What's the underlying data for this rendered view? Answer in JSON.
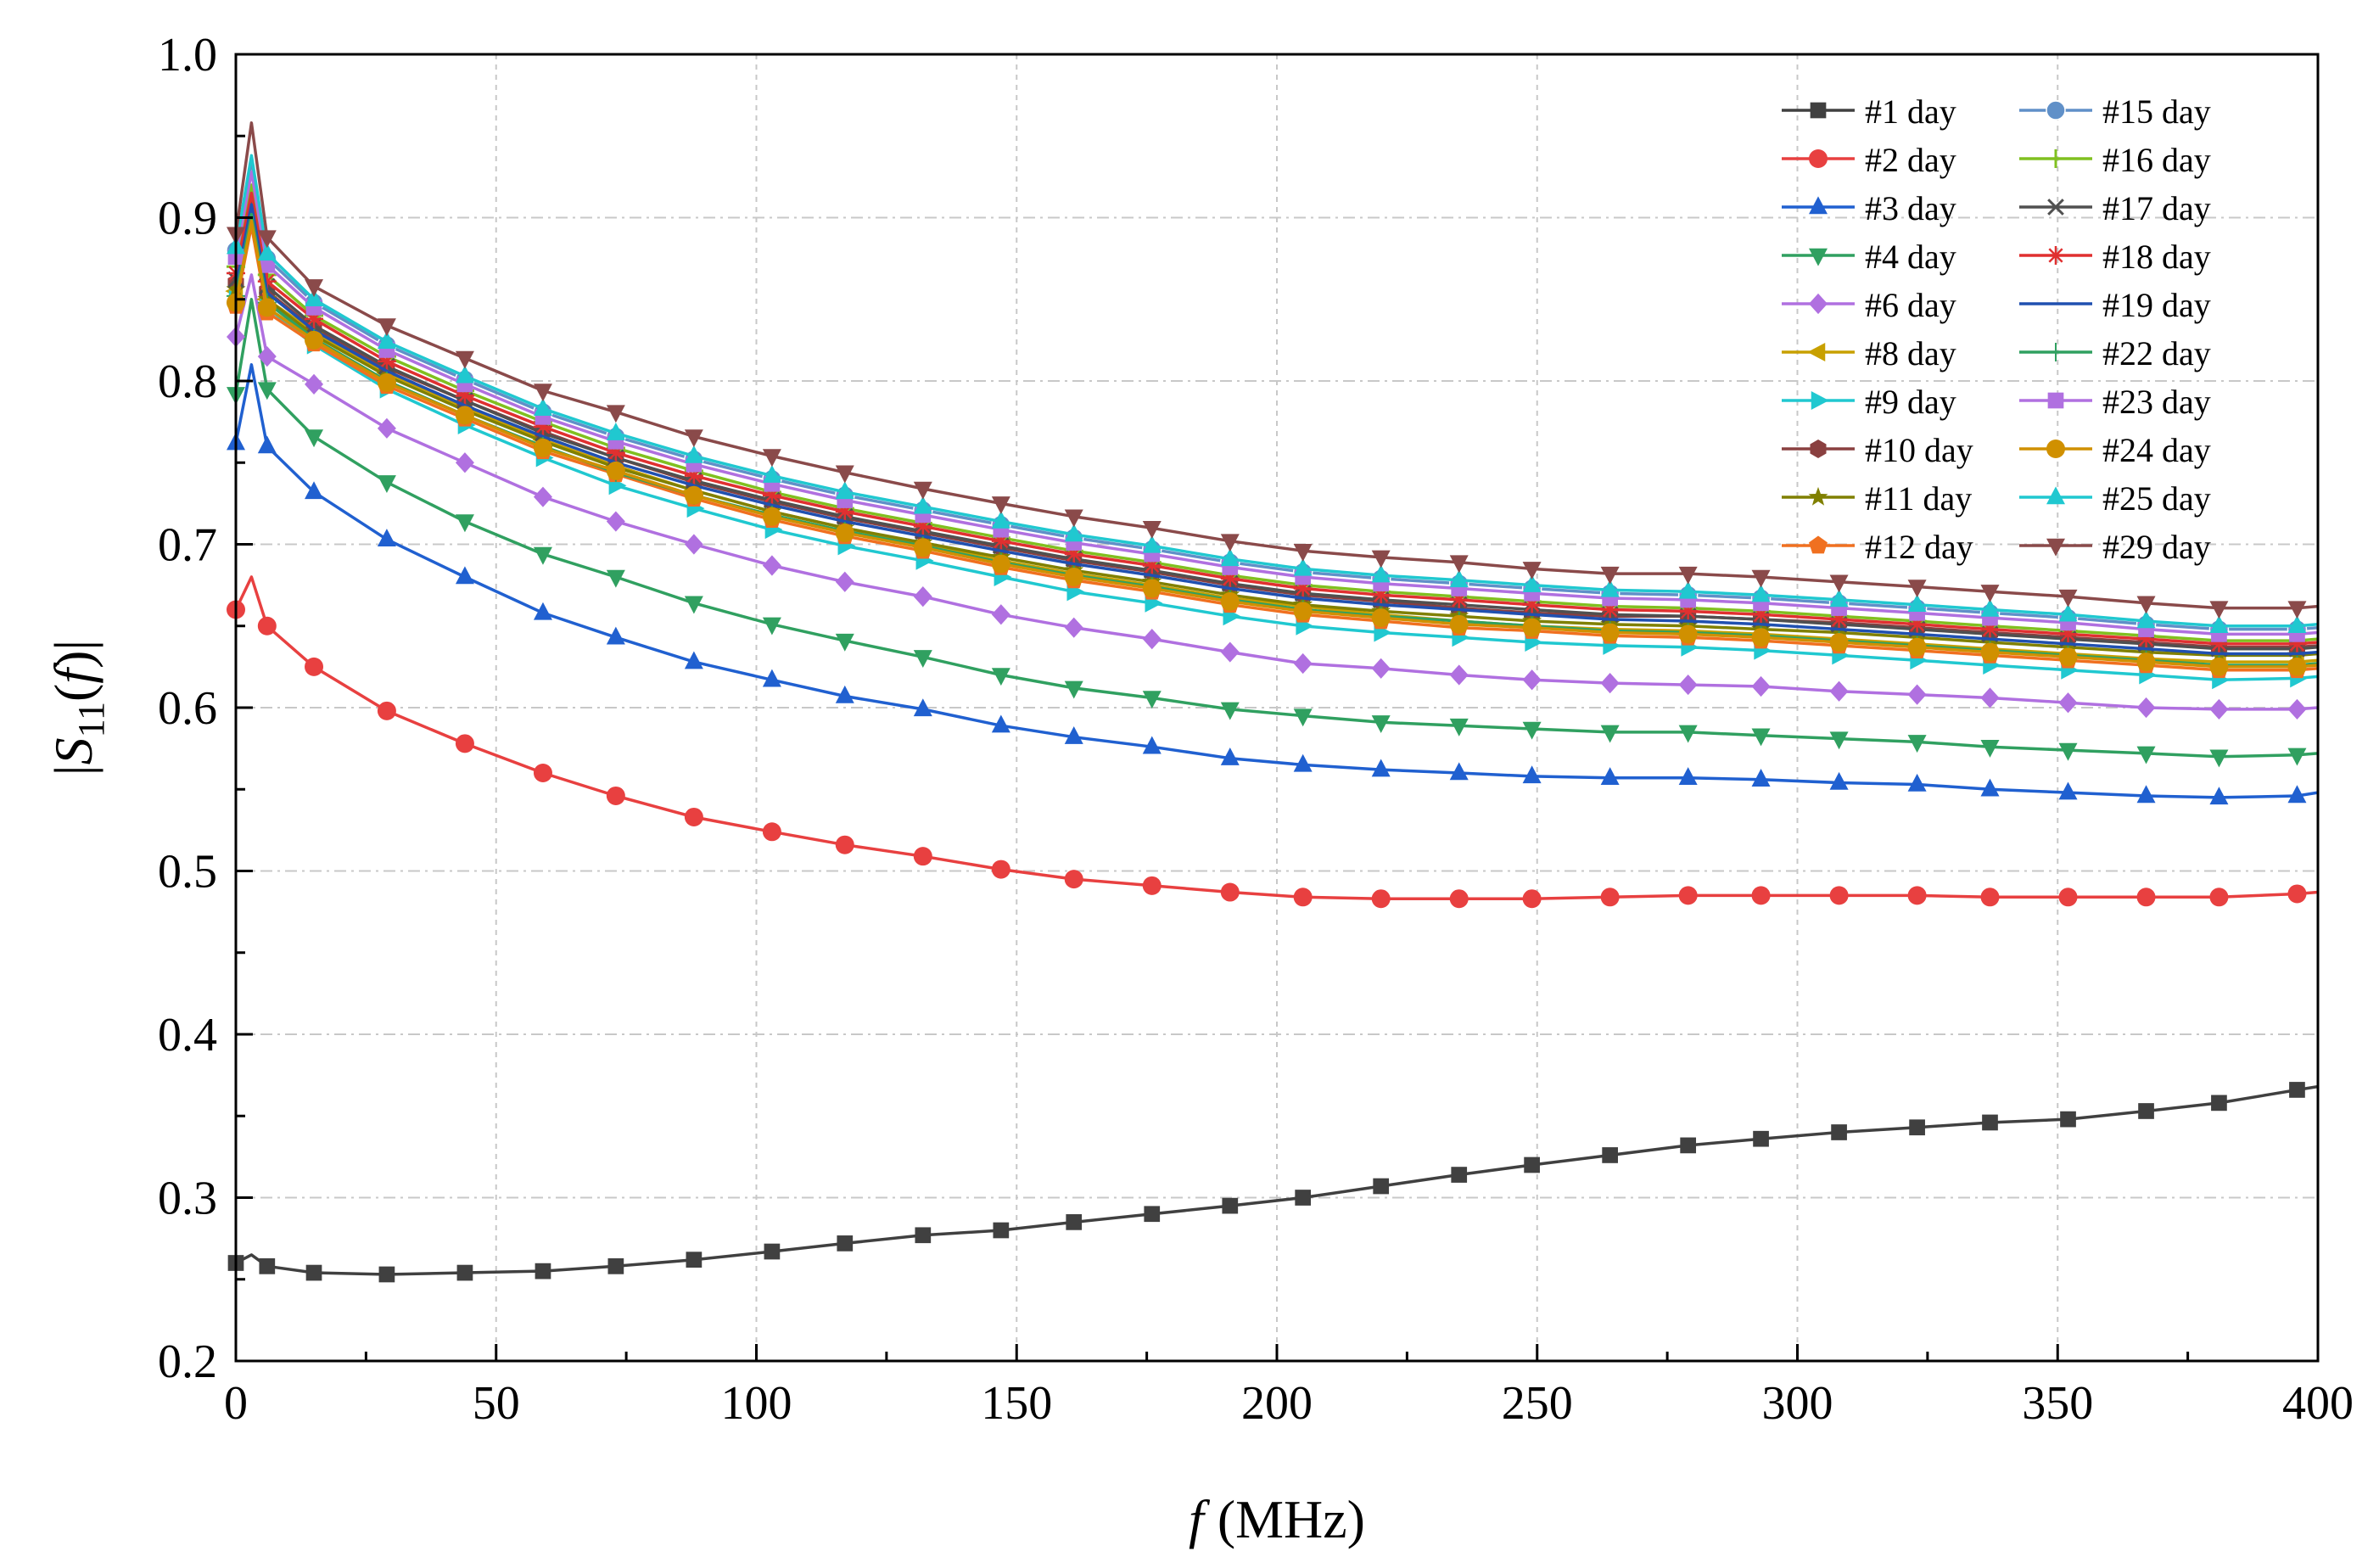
{
  "chart_data": {
    "type": "line",
    "xlabel_italic": "f",
    "xlabel_unit": " (MHz)",
    "ylabel_base": "S",
    "ylabel_sub": "11",
    "ylabel_arg": "f",
    "xlim": [
      0,
      400
    ],
    "ylim": [
      0.2,
      1.0
    ],
    "xticks": [
      0,
      50,
      100,
      150,
      200,
      250,
      300,
      350,
      400
    ],
    "xtick_labels": [
      "0",
      "50",
      "100",
      "150",
      "200",
      "250",
      "300",
      "350",
      "400"
    ],
    "yticks": [
      0.2,
      0.3,
      0.4,
      0.5,
      0.6,
      0.7,
      0.8,
      0.9,
      1.0
    ],
    "ytick_labels": [
      "0.2",
      "0.3",
      "0.4",
      "0.5",
      "0.6",
      "0.7",
      "0.8",
      "0.9",
      "1.0"
    ],
    "grid": true,
    "legend_position": "top-right",
    "x": [
      0,
      3,
      6,
      15,
      29,
      44,
      59,
      73,
      88,
      103,
      117,
      132,
      147,
      161,
      176,
      191,
      205,
      220,
      235,
      249,
      264,
      279,
      293,
      308,
      323,
      337,
      352,
      367,
      381,
      396,
      400
    ],
    "series": [
      {
        "name": "#1 day",
        "color": "#404040",
        "marker": "square",
        "values": [
          0.26,
          0.265,
          0.258,
          0.254,
          0.253,
          0.254,
          0.255,
          0.258,
          0.262,
          0.267,
          0.272,
          0.277,
          0.28,
          0.285,
          0.29,
          0.295,
          0.3,
          0.307,
          0.314,
          0.32,
          0.326,
          0.332,
          0.336,
          0.34,
          0.343,
          0.346,
          0.348,
          0.353,
          0.358,
          0.366,
          0.368
        ]
      },
      {
        "name": "#2 day",
        "color": "#e84040",
        "marker": "circle",
        "values": [
          0.66,
          0.68,
          0.65,
          0.625,
          0.598,
          0.578,
          0.56,
          0.546,
          0.533,
          0.524,
          0.516,
          0.509,
          0.501,
          0.495,
          0.491,
          0.487,
          0.484,
          0.483,
          0.483,
          0.483,
          0.484,
          0.485,
          0.485,
          0.485,
          0.485,
          0.484,
          0.484,
          0.484,
          0.484,
          0.486,
          0.487
        ]
      },
      {
        "name": "#3 day",
        "color": "#2060d0",
        "marker": "triangle-up",
        "values": [
          0.762,
          0.81,
          0.76,
          0.732,
          0.703,
          0.68,
          0.658,
          0.643,
          0.628,
          0.617,
          0.607,
          0.599,
          0.589,
          0.582,
          0.576,
          0.569,
          0.565,
          0.562,
          0.56,
          0.558,
          0.557,
          0.557,
          0.556,
          0.554,
          0.553,
          0.55,
          0.548,
          0.546,
          0.545,
          0.546,
          0.548
        ]
      },
      {
        "name": "#4 day",
        "color": "#30a060",
        "marker": "triangle-down",
        "values": [
          0.792,
          0.85,
          0.795,
          0.766,
          0.738,
          0.714,
          0.694,
          0.68,
          0.664,
          0.651,
          0.641,
          0.631,
          0.62,
          0.612,
          0.606,
          0.599,
          0.595,
          0.591,
          0.589,
          0.587,
          0.585,
          0.585,
          0.583,
          0.581,
          0.579,
          0.576,
          0.574,
          0.572,
          0.57,
          0.571,
          0.572
        ]
      },
      {
        "name": "#6 day",
        "color": "#b070e0",
        "marker": "diamond",
        "values": [
          0.827,
          0.865,
          0.815,
          0.798,
          0.771,
          0.75,
          0.729,
          0.714,
          0.7,
          0.687,
          0.677,
          0.668,
          0.657,
          0.649,
          0.642,
          0.634,
          0.627,
          0.624,
          0.62,
          0.617,
          0.615,
          0.614,
          0.613,
          0.61,
          0.608,
          0.606,
          0.603,
          0.6,
          0.599,
          0.599,
          0.6
        ]
      },
      {
        "name": "#8 day",
        "color": "#c8a000",
        "marker": "triangle-left",
        "values": [
          0.855,
          0.905,
          0.85,
          0.83,
          0.805,
          0.784,
          0.764,
          0.748,
          0.733,
          0.72,
          0.71,
          0.7,
          0.69,
          0.682,
          0.675,
          0.667,
          0.662,
          0.657,
          0.653,
          0.65,
          0.648,
          0.647,
          0.645,
          0.642,
          0.639,
          0.636,
          0.633,
          0.63,
          0.628,
          0.628,
          0.629
        ]
      },
      {
        "name": "#9 day",
        "color": "#20c8d0",
        "marker": "triangle-right",
        "values": [
          0.85,
          0.9,
          0.845,
          0.822,
          0.795,
          0.773,
          0.753,
          0.736,
          0.722,
          0.709,
          0.699,
          0.69,
          0.68,
          0.671,
          0.664,
          0.656,
          0.65,
          0.646,
          0.643,
          0.64,
          0.638,
          0.637,
          0.635,
          0.632,
          0.629,
          0.626,
          0.623,
          0.62,
          0.617,
          0.618,
          0.619
        ]
      },
      {
        "name": "#10 day",
        "color": "#8a4040",
        "marker": "hexagon",
        "values": [
          0.86,
          0.91,
          0.855,
          0.832,
          0.808,
          0.788,
          0.769,
          0.753,
          0.738,
          0.726,
          0.716,
          0.707,
          0.698,
          0.69,
          0.683,
          0.675,
          0.669,
          0.665,
          0.661,
          0.658,
          0.656,
          0.656,
          0.654,
          0.652,
          0.649,
          0.646,
          0.643,
          0.64,
          0.637,
          0.637,
          0.638
        ]
      },
      {
        "name": "#11 day",
        "color": "#808000",
        "marker": "star",
        "values": [
          0.856,
          0.905,
          0.85,
          0.828,
          0.803,
          0.782,
          0.763,
          0.747,
          0.733,
          0.72,
          0.71,
          0.701,
          0.692,
          0.684,
          0.677,
          0.669,
          0.663,
          0.659,
          0.656,
          0.653,
          0.651,
          0.65,
          0.648,
          0.646,
          0.643,
          0.64,
          0.637,
          0.634,
          0.632,
          0.632,
          0.633
        ]
      },
      {
        "name": "#12 day",
        "color": "#f07020",
        "marker": "pentagon",
        "values": [
          0.846,
          0.895,
          0.842,
          0.823,
          0.797,
          0.777,
          0.757,
          0.743,
          0.728,
          0.715,
          0.705,
          0.696,
          0.686,
          0.678,
          0.671,
          0.663,
          0.657,
          0.653,
          0.649,
          0.647,
          0.644,
          0.643,
          0.641,
          0.638,
          0.635,
          0.632,
          0.629,
          0.626,
          0.623,
          0.623,
          0.624
        ]
      },
      {
        "name": "#15 day",
        "color": "#6090c8",
        "marker": "sphere",
        "values": [
          0.88,
          0.935,
          0.875,
          0.848,
          0.822,
          0.801,
          0.781,
          0.766,
          0.752,
          0.74,
          0.73,
          0.721,
          0.712,
          0.704,
          0.697,
          0.689,
          0.683,
          0.679,
          0.676,
          0.673,
          0.67,
          0.669,
          0.667,
          0.664,
          0.661,
          0.658,
          0.655,
          0.651,
          0.648,
          0.648,
          0.649
        ]
      },
      {
        "name": "#16 day",
        "color": "#80c020",
        "marker": "plus",
        "values": [
          0.87,
          0.92,
          0.865,
          0.84,
          0.815,
          0.794,
          0.775,
          0.759,
          0.745,
          0.732,
          0.722,
          0.713,
          0.704,
          0.696,
          0.689,
          0.681,
          0.675,
          0.671,
          0.668,
          0.665,
          0.662,
          0.661,
          0.659,
          0.656,
          0.653,
          0.65,
          0.647,
          0.644,
          0.641,
          0.641,
          0.642
        ]
      },
      {
        "name": "#17 day",
        "color": "#505050",
        "marker": "x",
        "values": [
          0.862,
          0.912,
          0.858,
          0.834,
          0.809,
          0.788,
          0.768,
          0.753,
          0.739,
          0.727,
          0.717,
          0.708,
          0.699,
          0.691,
          0.684,
          0.676,
          0.67,
          0.666,
          0.663,
          0.66,
          0.657,
          0.656,
          0.654,
          0.651,
          0.648,
          0.645,
          0.642,
          0.639,
          0.636,
          0.636,
          0.637
        ]
      },
      {
        "name": "#18 day",
        "color": "#e03030",
        "marker": "asterisk",
        "values": [
          0.866,
          0.915,
          0.861,
          0.838,
          0.812,
          0.791,
          0.772,
          0.756,
          0.742,
          0.73,
          0.72,
          0.711,
          0.702,
          0.694,
          0.687,
          0.679,
          0.673,
          0.669,
          0.666,
          0.663,
          0.66,
          0.659,
          0.657,
          0.654,
          0.651,
          0.648,
          0.645,
          0.642,
          0.639,
          0.639,
          0.64
        ]
      },
      {
        "name": "#19 day",
        "color": "#2050b0",
        "marker": "none",
        "values": [
          0.858,
          0.908,
          0.854,
          0.831,
          0.806,
          0.785,
          0.766,
          0.75,
          0.736,
          0.724,
          0.714,
          0.705,
          0.696,
          0.688,
          0.681,
          0.673,
          0.667,
          0.663,
          0.66,
          0.657,
          0.654,
          0.653,
          0.651,
          0.648,
          0.645,
          0.642,
          0.639,
          0.636,
          0.633,
          0.633,
          0.634
        ]
      },
      {
        "name": "#22 day",
        "color": "#30a060",
        "marker": "thin-plus",
        "values": [
          0.852,
          0.902,
          0.848,
          0.826,
          0.8,
          0.779,
          0.76,
          0.744,
          0.73,
          0.718,
          0.708,
          0.699,
          0.689,
          0.681,
          0.674,
          0.666,
          0.66,
          0.656,
          0.653,
          0.65,
          0.647,
          0.646,
          0.644,
          0.641,
          0.638,
          0.635,
          0.632,
          0.629,
          0.626,
          0.626,
          0.627
        ]
      },
      {
        "name": "#23 day",
        "color": "#b070e0",
        "marker": "square",
        "values": [
          0.876,
          0.928,
          0.871,
          0.845,
          0.819,
          0.798,
          0.778,
          0.763,
          0.749,
          0.737,
          0.727,
          0.718,
          0.709,
          0.701,
          0.694,
          0.686,
          0.68,
          0.676,
          0.673,
          0.67,
          0.667,
          0.666,
          0.664,
          0.661,
          0.658,
          0.655,
          0.652,
          0.648,
          0.645,
          0.645,
          0.646
        ]
      },
      {
        "name": "#24 day",
        "color": "#d09000",
        "marker": "circle",
        "values": [
          0.848,
          0.898,
          0.845,
          0.825,
          0.799,
          0.779,
          0.759,
          0.745,
          0.73,
          0.717,
          0.707,
          0.698,
          0.688,
          0.68,
          0.673,
          0.665,
          0.659,
          0.655,
          0.651,
          0.649,
          0.646,
          0.645,
          0.643,
          0.64,
          0.637,
          0.634,
          0.631,
          0.628,
          0.625,
          0.625,
          0.626
        ]
      },
      {
        "name": "#25 day",
        "color": "#20c8d0",
        "marker": "triangle-up",
        "values": [
          0.882,
          0.938,
          0.878,
          0.85,
          0.824,
          0.803,
          0.783,
          0.768,
          0.754,
          0.742,
          0.732,
          0.723,
          0.714,
          0.706,
          0.699,
          0.691,
          0.685,
          0.681,
          0.678,
          0.675,
          0.672,
          0.671,
          0.669,
          0.666,
          0.663,
          0.66,
          0.657,
          0.653,
          0.65,
          0.65,
          0.651
        ]
      },
      {
        "name": "#29 day",
        "color": "#8a4a4a",
        "marker": "triangle-down",
        "values": [
          0.89,
          0.958,
          0.888,
          0.858,
          0.834,
          0.814,
          0.794,
          0.781,
          0.766,
          0.754,
          0.744,
          0.734,
          0.725,
          0.717,
          0.71,
          0.702,
          0.696,
          0.692,
          0.689,
          0.685,
          0.682,
          0.682,
          0.68,
          0.677,
          0.674,
          0.671,
          0.668,
          0.664,
          0.661,
          0.661,
          0.662
        ]
      }
    ]
  }
}
